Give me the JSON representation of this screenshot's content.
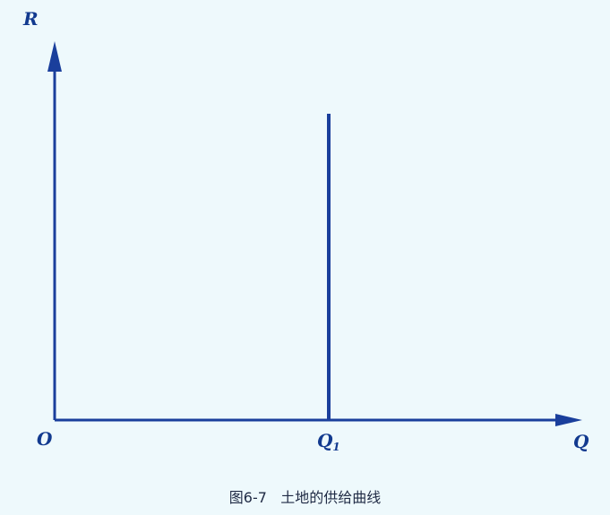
{
  "chart_data": {
    "type": "line",
    "ylabel": "R",
    "xlabel": "Q",
    "origin_label": "O",
    "x_ticks": [
      {
        "value": 1,
        "label": "Q",
        "sub": "1"
      }
    ],
    "series": [
      {
        "x": [
          1,
          1
        ],
        "y": [
          0,
          1.0
        ]
      }
    ],
    "xlim": [
      0,
      1.96
    ],
    "ylim": [
      0,
      1.0
    ],
    "grid": false,
    "legend": "none",
    "colors": {
      "axis": "#1a3f9c",
      "line": "#1a3f9c",
      "text": "#123a8f",
      "background": "#eef9fc"
    }
  },
  "caption": "图6-7   土地的供给曲线"
}
